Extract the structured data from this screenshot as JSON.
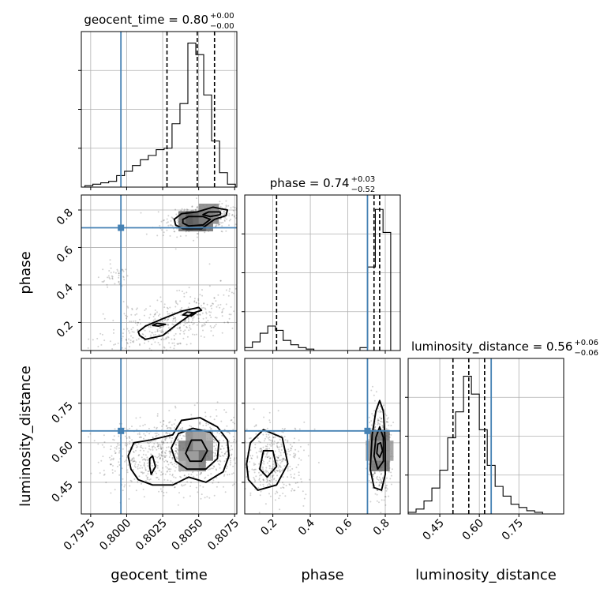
{
  "chart_data": {
    "type": "corner",
    "parameters": [
      "geocent_time",
      "phase",
      "luminosity_distance"
    ],
    "truth": {
      "geocent_time": 0.7996,
      "phase": 0.705,
      "luminosity_distance": 0.645
    },
    "truth_color": "#4682b4",
    "titles": [
      {
        "label": "geocent_time = 0.80",
        "plus": "+0.00",
        "minus": "−0.00"
      },
      {
        "label": "phase = 0.74",
        "plus": "+0.03",
        "minus": "−0.52"
      },
      {
        "label": "luminosity_distance = 0.56",
        "plus": "+0.06",
        "minus": "−0.06"
      }
    ],
    "axis_labels": {
      "geocent_time": "geocent_time",
      "phase": "phase",
      "luminosity_distance": "luminosity_distance"
    },
    "ranges": {
      "geocent_time": [
        0.79685,
        0.80765
      ],
      "phase": [
        0.05,
        0.88
      ],
      "luminosity_distance": [
        0.33,
        0.92
      ]
    },
    "ticks": {
      "geocent_time": {
        "values": [
          0.7975,
          0.8,
          0.8025,
          0.805,
          0.8075
        ],
        "labels": [
          "0.7975",
          "0.8000",
          "0.8025",
          "0.8050",
          "0.8075"
        ]
      },
      "phase": {
        "values": [
          0.2,
          0.4,
          0.6,
          0.8
        ],
        "labels": [
          "0.2",
          "0.4",
          "0.6",
          "0.8"
        ]
      },
      "luminosity_distance": {
        "values": [
          0.45,
          0.6,
          0.75
        ],
        "labels": [
          "0.45",
          "0.60",
          "0.75"
        ]
      }
    },
    "histograms": {
      "geocent_time": {
        "edges": [
          0.7971,
          0.79765,
          0.7982,
          0.79875,
          0.7993,
          0.79985,
          0.8004,
          0.80095,
          0.8015,
          0.80205,
          0.8026,
          0.80315,
          0.8037,
          0.80425,
          0.8048,
          0.80535,
          0.8059,
          0.80645,
          0.807,
          0.80755
        ],
        "counts": [
          1,
          2,
          3,
          4,
          8,
          11,
          15,
          19,
          22,
          26,
          27,
          44,
          58,
          100,
          92,
          64,
          32,
          10,
          2
        ],
        "quantiles": [
          0.8028,
          0.8049,
          0.8061
        ],
        "ymax": 108
      },
      "phase": {
        "edges": [
          0.05,
          0.091,
          0.132,
          0.173,
          0.214,
          0.255,
          0.296,
          0.337,
          0.378,
          0.419,
          0.46,
          0.501,
          0.542,
          0.583,
          0.624,
          0.665,
          0.706,
          0.747,
          0.788,
          0.829
        ],
        "counts": [
          2,
          6,
          12,
          17,
          14,
          7,
          4,
          2,
          1,
          0,
          0,
          0,
          0,
          0,
          0,
          2,
          58,
          98,
          82
        ],
        "quantiles": [
          0.22,
          0.74,
          0.77
        ],
        "ymax": 108
      },
      "luminosity_distance": {
        "edges": [
          0.33,
          0.36,
          0.39,
          0.42,
          0.45,
          0.48,
          0.51,
          0.54,
          0.57,
          0.6,
          0.63,
          0.66,
          0.69,
          0.72,
          0.75,
          0.78,
          0.81,
          0.84
        ],
        "counts": [
          1,
          3,
          8,
          16,
          27,
          47,
          63,
          85,
          74,
          52,
          30,
          17,
          11,
          6,
          4,
          2,
          1
        ],
        "quantiles": [
          0.5,
          0.56,
          0.62
        ],
        "ymax": 96
      }
    },
    "scatter_clusters": [
      {
        "pair": [
          "geocent_time",
          "phase"
        ],
        "center": [
          0.8049,
          0.74
        ],
        "spread": [
          0.0012,
          0.03
        ],
        "tilt": 6,
        "n": 320
      },
      {
        "pair": [
          "geocent_time",
          "phase"
        ],
        "center": [
          0.8057,
          0.78
        ],
        "spread": [
          0.001,
          0.025
        ],
        "tilt": 6,
        "n": 220
      },
      {
        "pair": [
          "geocent_time",
          "phase"
        ],
        "center": [
          0.8032,
          0.2
        ],
        "spread": [
          0.0025,
          0.07
        ],
        "tilt": 26,
        "n": 460
      },
      {
        "pair": [
          "geocent_time",
          "phase"
        ],
        "center": [
          0.7991,
          0.44
        ],
        "spread": [
          0.0006,
          0.03
        ],
        "tilt": 15,
        "n": 45
      },
      {
        "pair": [
          "geocent_time",
          "luminosity_distance"
        ],
        "center": [
          0.8045,
          0.56
        ],
        "spread": [
          0.0022,
          0.07
        ],
        "tilt": 0,
        "n": 650
      },
      {
        "pair": [
          "geocent_time",
          "luminosity_distance"
        ],
        "center": [
          0.8013,
          0.55
        ],
        "spread": [
          0.0018,
          0.06
        ],
        "tilt": 0,
        "n": 250
      },
      {
        "pair": [
          "phase",
          "luminosity_distance"
        ],
        "center": [
          0.77,
          0.57
        ],
        "spread": [
          0.03,
          0.08
        ],
        "tilt": 0,
        "n": 450
      },
      {
        "pair": [
          "phase",
          "luminosity_distance"
        ],
        "center": [
          0.2,
          0.53
        ],
        "spread": [
          0.09,
          0.07
        ],
        "tilt": 0,
        "n": 400
      }
    ],
    "density_cells": [
      {
        "pair": [
          "geocent_time",
          "phase"
        ],
        "cells": [
          [
            0.8048,
            0.74,
            1.0
          ],
          [
            0.8043,
            0.74,
            0.55
          ],
          [
            0.8053,
            0.74,
            0.55
          ],
          [
            0.8057,
            0.78,
            0.45
          ]
        ]
      },
      {
        "pair": [
          "geocent_time",
          "luminosity_distance"
        ],
        "cells": [
          [
            0.8048,
            0.57,
            1.0
          ],
          [
            0.8043,
            0.57,
            0.5
          ],
          [
            0.8053,
            0.57,
            0.5
          ],
          [
            0.8048,
            0.53,
            0.5
          ],
          [
            0.8048,
            0.61,
            0.45
          ],
          [
            0.8043,
            0.53,
            0.3
          ],
          [
            0.8053,
            0.61,
            0.3
          ]
        ]
      },
      {
        "pair": [
          "phase",
          "luminosity_distance"
        ],
        "cells": [
          [
            0.77,
            0.57,
            1.0
          ],
          [
            0.77,
            0.53,
            0.55
          ],
          [
            0.77,
            0.61,
            0.55
          ],
          [
            0.75,
            0.57,
            0.35
          ],
          [
            0.79,
            0.57,
            0.35
          ]
        ]
      }
    ],
    "contours": [
      {
        "pair": [
          "geocent_time",
          "phase"
        ],
        "points": [
          [
            0.8034,
            0.72
          ],
          [
            0.8039,
            0.7
          ],
          [
            0.8052,
            0.7
          ],
          [
            0.8061,
            0.75
          ],
          [
            0.8069,
            0.77
          ],
          [
            0.807,
            0.8
          ],
          [
            0.806,
            0.815
          ],
          [
            0.8049,
            0.79
          ],
          [
            0.8038,
            0.78
          ],
          [
            0.8033,
            0.75
          ]
        ]
      },
      {
        "pair": [
          "geocent_time",
          "phase"
        ],
        "points": [
          [
            0.8039,
            0.73
          ],
          [
            0.8043,
            0.715
          ],
          [
            0.8053,
            0.72
          ],
          [
            0.8058,
            0.75
          ],
          [
            0.8053,
            0.765
          ],
          [
            0.8043,
            0.765
          ],
          [
            0.8039,
            0.75
          ]
        ]
      },
      {
        "pair": [
          "geocent_time",
          "phase"
        ],
        "points": [
          [
            0.8053,
            0.775
          ],
          [
            0.8058,
            0.765
          ],
          [
            0.8065,
            0.775
          ],
          [
            0.8065,
            0.79
          ],
          [
            0.8057,
            0.79
          ]
        ]
      },
      {
        "pair": [
          "geocent_time",
          "phase"
        ],
        "points": [
          [
            0.8009,
            0.13
          ],
          [
            0.8013,
            0.11
          ],
          [
            0.8025,
            0.13
          ],
          [
            0.8035,
            0.19
          ],
          [
            0.8046,
            0.25
          ],
          [
            0.8052,
            0.265
          ],
          [
            0.805,
            0.28
          ],
          [
            0.8038,
            0.26
          ],
          [
            0.8025,
            0.22
          ],
          [
            0.8013,
            0.18
          ],
          [
            0.8008,
            0.15
          ]
        ]
      },
      {
        "pair": [
          "geocent_time",
          "phase"
        ],
        "points": [
          [
            0.8018,
            0.185
          ],
          [
            0.8022,
            0.18
          ],
          [
            0.8027,
            0.19
          ],
          [
            0.8021,
            0.195
          ]
        ]
      },
      {
        "pair": [
          "geocent_time",
          "phase"
        ],
        "points": [
          [
            0.8039,
            0.24
          ],
          [
            0.8045,
            0.235
          ],
          [
            0.8048,
            0.25
          ],
          [
            0.8042,
            0.255
          ]
        ]
      },
      {
        "pair": [
          "geocent_time",
          "luminosity_distance"
        ],
        "points": [
          [
            0.8003,
            0.5
          ],
          [
            0.8008,
            0.46
          ],
          [
            0.8018,
            0.44
          ],
          [
            0.8032,
            0.44
          ],
          [
            0.8043,
            0.47
          ],
          [
            0.8055,
            0.45
          ],
          [
            0.8067,
            0.49
          ],
          [
            0.8071,
            0.55
          ],
          [
            0.807,
            0.61
          ],
          [
            0.8063,
            0.66
          ],
          [
            0.8051,
            0.695
          ],
          [
            0.8038,
            0.685
          ],
          [
            0.8032,
            0.63
          ],
          [
            0.8016,
            0.61
          ],
          [
            0.8005,
            0.6
          ],
          [
            0.8001,
            0.55
          ]
        ]
      },
      {
        "pair": [
          "geocent_time",
          "luminosity_distance"
        ],
        "points": [
          [
            0.8031,
            0.58
          ],
          [
            0.8034,
            0.53
          ],
          [
            0.8042,
            0.5
          ],
          [
            0.8055,
            0.5
          ],
          [
            0.8063,
            0.54
          ],
          [
            0.8064,
            0.6
          ],
          [
            0.8058,
            0.64
          ],
          [
            0.8046,
            0.655
          ],
          [
            0.8036,
            0.635
          ]
        ]
      },
      {
        "pair": [
          "geocent_time",
          "luminosity_distance"
        ],
        "points": [
          [
            0.8041,
            0.56
          ],
          [
            0.8044,
            0.53
          ],
          [
            0.8052,
            0.53
          ],
          [
            0.8056,
            0.57
          ],
          [
            0.8052,
            0.61
          ],
          [
            0.8045,
            0.61
          ]
        ]
      },
      {
        "pair": [
          "geocent_time",
          "luminosity_distance"
        ],
        "points": [
          [
            0.8016,
            0.51
          ],
          [
            0.8017,
            0.48
          ],
          [
            0.802,
            0.51
          ],
          [
            0.8018,
            0.55
          ],
          [
            0.8016,
            0.54
          ]
        ]
      },
      {
        "pair": [
          "phase",
          "luminosity_distance"
        ],
        "points": [
          [
            0.72,
            0.5
          ],
          [
            0.74,
            0.43
          ],
          [
            0.78,
            0.42
          ],
          [
            0.8,
            0.48
          ],
          [
            0.8,
            0.6
          ],
          [
            0.79,
            0.72
          ],
          [
            0.77,
            0.76
          ],
          [
            0.75,
            0.72
          ],
          [
            0.73,
            0.63
          ]
        ]
      },
      {
        "pair": [
          "phase",
          "luminosity_distance"
        ],
        "points": [
          [
            0.74,
            0.55
          ],
          [
            0.76,
            0.5
          ],
          [
            0.79,
            0.53
          ],
          [
            0.79,
            0.62
          ],
          [
            0.77,
            0.66
          ],
          [
            0.75,
            0.62
          ]
        ]
      },
      {
        "pair": [
          "phase",
          "luminosity_distance"
        ],
        "points": [
          [
            0.755,
            0.56
          ],
          [
            0.77,
            0.545
          ],
          [
            0.785,
            0.57
          ],
          [
            0.775,
            0.6
          ],
          [
            0.76,
            0.595
          ]
        ]
      },
      {
        "pair": [
          "phase",
          "luminosity_distance"
        ],
        "points": [
          [
            0.07,
            0.46
          ],
          [
            0.12,
            0.42
          ],
          [
            0.22,
            0.44
          ],
          [
            0.28,
            0.52
          ],
          [
            0.25,
            0.62
          ],
          [
            0.15,
            0.65
          ],
          [
            0.08,
            0.6
          ],
          [
            0.06,
            0.52
          ]
        ]
      },
      {
        "pair": [
          "phase",
          "luminosity_distance"
        ],
        "points": [
          [
            0.13,
            0.5
          ],
          [
            0.17,
            0.47
          ],
          [
            0.22,
            0.51
          ],
          [
            0.2,
            0.57
          ],
          [
            0.15,
            0.57
          ]
        ]
      }
    ]
  }
}
